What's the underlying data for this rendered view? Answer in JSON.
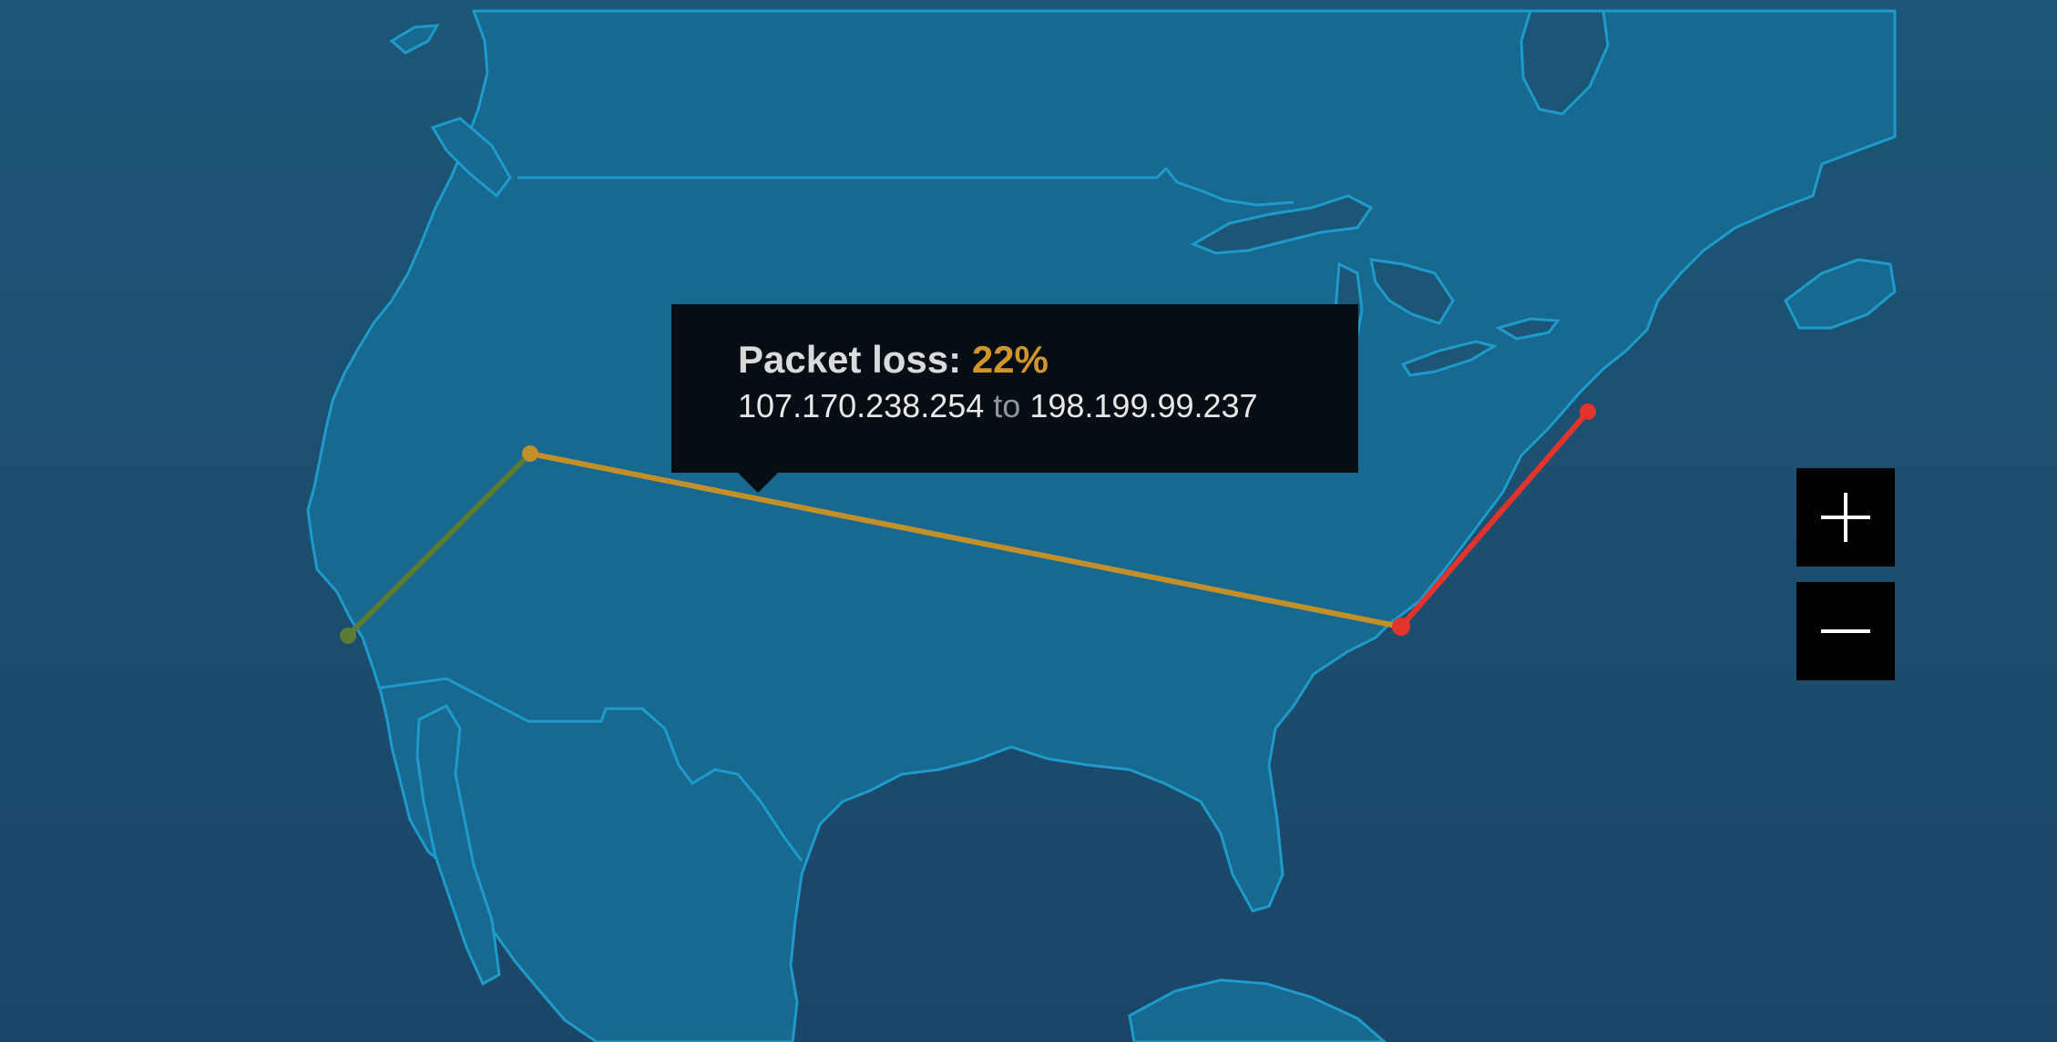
{
  "tooltip": {
    "metric_label": "Packet loss:",
    "metric_value": "22%",
    "source_ip": "107.170.238.254",
    "connector": "to",
    "dest_ip": "198.199.99.237"
  },
  "routes": [
    {
      "from": "San Francisco area",
      "to": "Utah area",
      "color": "#5a7b35"
    },
    {
      "from": "Utah area",
      "to": "Virginia coast",
      "color": "#c38f2a"
    },
    {
      "from": "Virginia coast",
      "to": "Boston area",
      "color": "#e2332d"
    }
  ],
  "colors": {
    "ocean": "#1c4d6f",
    "land": "#18698f",
    "border": "#1e9acb",
    "tooltip_bg": "#060e13",
    "loss_highlight": "#d1952c"
  },
  "controls": {
    "zoom_in_icon": "plus-icon",
    "zoom_out_icon": "minus-icon"
  }
}
